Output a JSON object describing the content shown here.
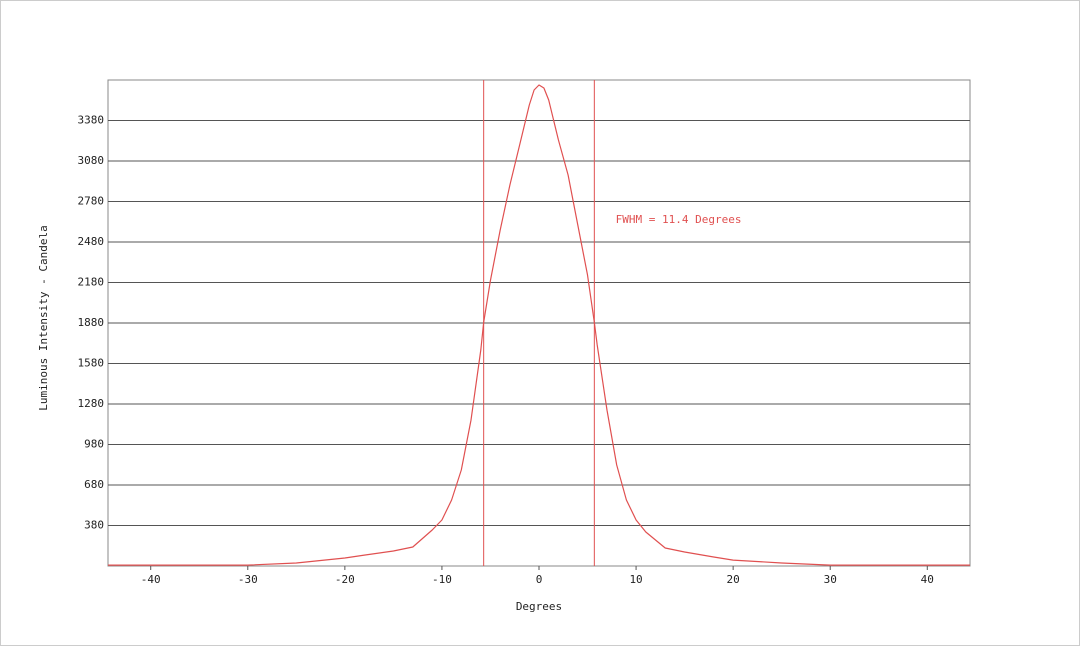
{
  "chart_data": {
    "type": "line",
    "x_label": "Degrees",
    "y_label": "Luminous Intensity - Candela",
    "annotation": "FWHM = 11.4 Degrees",
    "annotation_at": [
      7.9,
      2643
    ],
    "fwhm_lines": [
      -5.7,
      5.7
    ],
    "color": "#e05050",
    "grid": true,
    "xlim": [
      -44.4,
      44.4
    ],
    "ylim": [
      80,
      3680
    ],
    "xticks": [
      -40,
      -30,
      -20,
      -10,
      0,
      10,
      20,
      30,
      40
    ],
    "yticks": [
      380,
      680,
      980,
      1280,
      1580,
      1880,
      2180,
      2480,
      2780,
      3080,
      3380
    ],
    "x": [
      -44.4,
      -30,
      -25,
      -20,
      -18,
      -15,
      -13,
      -11,
      -10,
      -9,
      -8,
      -7,
      -6,
      -5.7,
      -5,
      -4,
      -3,
      -2,
      -1,
      -0.5,
      0,
      0.5,
      1,
      2,
      3,
      4,
      5,
      5.7,
      6,
      7,
      8,
      9,
      10,
      11,
      13,
      15,
      18,
      20,
      25,
      30,
      44.4
    ],
    "values": [
      87,
      87,
      102,
      139,
      161,
      191,
      221,
      347,
      421,
      569,
      791,
      1161,
      1680,
      1887,
      2198,
      2569,
      2902,
      3198,
      3495,
      3606,
      3643,
      3621,
      3532,
      3236,
      2976,
      2606,
      2236,
      1887,
      1717,
      1235,
      828,
      569,
      421,
      332,
      213,
      184,
      147,
      124,
      102,
      87,
      87
    ]
  }
}
